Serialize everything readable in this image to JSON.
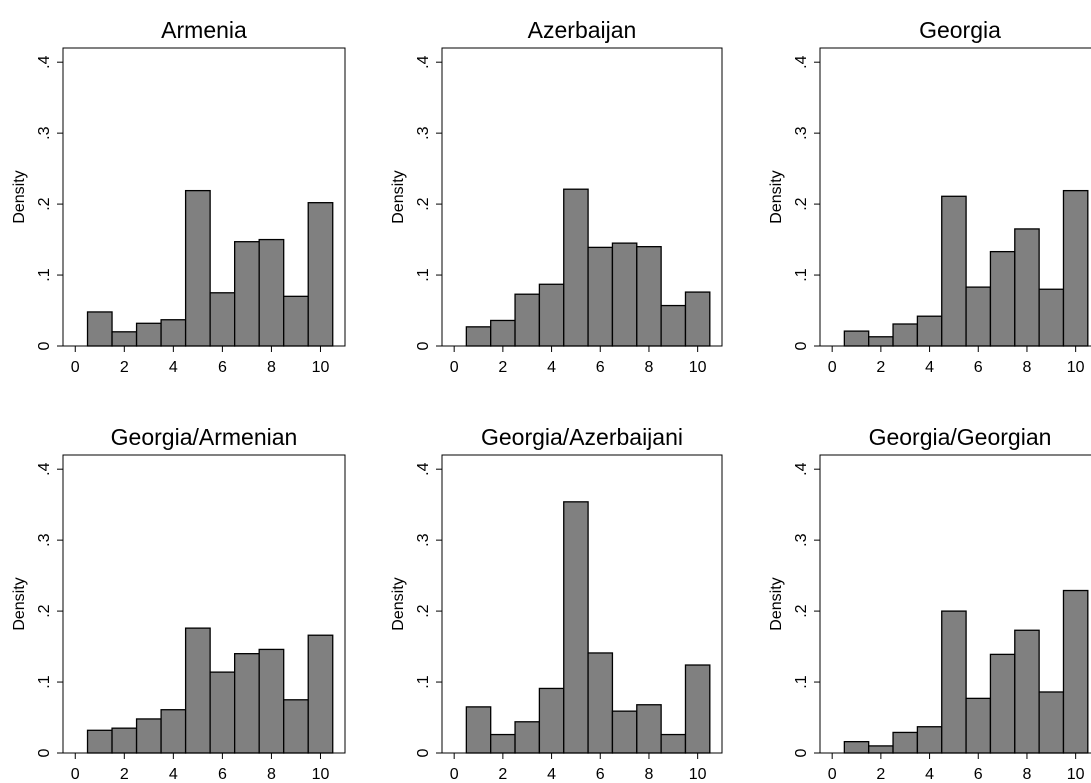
{
  "chart_data": [
    {
      "type": "bar",
      "title": "Armenia",
      "ylabel": "Density",
      "xlim": [
        -0.5,
        11
      ],
      "ylim": [
        0,
        0.42
      ],
      "xticks": [
        "0",
        "2",
        "4",
        "6",
        "8",
        "10"
      ],
      "yticks": [
        "0",
        ".1",
        ".2",
        ".3",
        ".4"
      ],
      "bins": [
        1,
        2,
        3,
        4,
        5,
        6,
        7,
        8,
        9,
        10
      ],
      "values": [
        0.048,
        0.02,
        0.032,
        0.037,
        0.219,
        0.075,
        0.147,
        0.15,
        0.07,
        0.202
      ]
    },
    {
      "type": "bar",
      "title": "Azerbaijan",
      "ylabel": "Density",
      "xlim": [
        -0.5,
        11
      ],
      "ylim": [
        0,
        0.42
      ],
      "xticks": [
        "0",
        "2",
        "4",
        "6",
        "8",
        "10"
      ],
      "yticks": [
        "0",
        ".1",
        ".2",
        ".3",
        ".4"
      ],
      "bins": [
        1,
        2,
        3,
        4,
        5,
        6,
        7,
        8,
        9,
        10
      ],
      "values": [
        0.027,
        0.036,
        0.073,
        0.087,
        0.221,
        0.139,
        0.145,
        0.14,
        0.057,
        0.076
      ]
    },
    {
      "type": "bar",
      "title": "Georgia",
      "ylabel": "Density",
      "xlim": [
        -0.5,
        11
      ],
      "ylim": [
        0,
        0.42
      ],
      "xticks": [
        "0",
        "2",
        "4",
        "6",
        "8",
        "10"
      ],
      "yticks": [
        "0",
        ".1",
        ".2",
        ".3",
        ".4"
      ],
      "bins": [
        1,
        2,
        3,
        4,
        5,
        6,
        7,
        8,
        9,
        10
      ],
      "values": [
        0.021,
        0.013,
        0.031,
        0.042,
        0.211,
        0.083,
        0.133,
        0.165,
        0.08,
        0.219
      ]
    },
    {
      "type": "bar",
      "title": "Georgia/Armenian",
      "ylabel": "Density",
      "xlim": [
        -0.5,
        11
      ],
      "ylim": [
        0,
        0.42
      ],
      "xticks": [
        "0",
        "2",
        "4",
        "6",
        "8",
        "10"
      ],
      "yticks": [
        "0",
        ".1",
        ".2",
        ".3",
        ".4"
      ],
      "bins": [
        1,
        2,
        3,
        4,
        5,
        6,
        7,
        8,
        9,
        10
      ],
      "values": [
        0.032,
        0.035,
        0.048,
        0.061,
        0.176,
        0.114,
        0.14,
        0.146,
        0.075,
        0.166
      ]
    },
    {
      "type": "bar",
      "title": "Georgia/Azerbaijani",
      "ylabel": "Density",
      "xlim": [
        -0.5,
        11
      ],
      "ylim": [
        0,
        0.42
      ],
      "xticks": [
        "0",
        "2",
        "4",
        "6",
        "8",
        "10"
      ],
      "yticks": [
        "0",
        ".1",
        ".2",
        ".3",
        ".4"
      ],
      "bins": [
        1,
        2,
        3,
        4,
        5,
        6,
        7,
        8,
        9,
        10
      ],
      "values": [
        0.065,
        0.026,
        0.044,
        0.091,
        0.354,
        0.141,
        0.059,
        0.068,
        0.026,
        0.124
      ]
    },
    {
      "type": "bar",
      "title": "Georgia/Georgian",
      "ylabel": "Density",
      "xlim": [
        -0.5,
        11
      ],
      "ylim": [
        0,
        0.42
      ],
      "xticks": [
        "0",
        "2",
        "4",
        "6",
        "8",
        "10"
      ],
      "yticks": [
        "0",
        ".1",
        ".2",
        ".3",
        ".4"
      ],
      "bins": [
        1,
        2,
        3,
        4,
        5,
        6,
        7,
        8,
        9,
        10
      ],
      "values": [
        0.016,
        0.01,
        0.029,
        0.037,
        0.2,
        0.077,
        0.139,
        0.173,
        0.086,
        0.229
      ]
    }
  ]
}
